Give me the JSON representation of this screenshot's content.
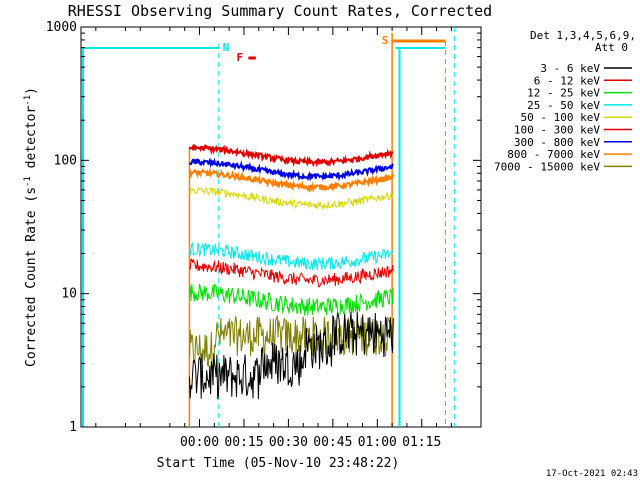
{
  "chart_data": {
    "type": "line",
    "title": "RHESSI Observing Summary Count Rates, Corrected",
    "xlabel": "Start Time (05-Nov-10 23:48:22)",
    "ylabel": "Corrected Count Rate (s⁻¹ detector⁻¹)",
    "ylabel_parts": {
      "main": "Corrected Count Rate (s",
      "sup1": "-1",
      "mid": " detector",
      "sup2": "-1",
      "end": ")"
    },
    "yscale": "log",
    "ylim": [
      1,
      1000
    ],
    "xlim_minutes": [
      -40,
      95
    ],
    "x_tick_minutes": [
      0,
      15,
      30,
      45,
      60,
      75
    ],
    "x_tick_labels": [
      "00:00",
      "00:15",
      "00:30",
      "00:45",
      "01:00",
      "01:15"
    ],
    "y_tick_values": [
      1,
      10,
      100,
      1000
    ],
    "y_tick_labels": [
      "1",
      "10",
      "100",
      "1000"
    ],
    "legend_header": [
      "Det 1,3,4,5,6,9,",
      "Att 0"
    ],
    "legend_position": "right outside",
    "data_window_minutes": [
      -3.4,
      65.4
    ],
    "series": [
      {
        "name": "3 - 6 keV",
        "color": "#000000",
        "level": 3,
        "noise": 0.22
      },
      {
        "name": "6 - 12 keV",
        "color": "#e00000",
        "level": 15,
        "noise": 0.05
      },
      {
        "name": "12 - 25 keV",
        "color": "#00e000",
        "level": 9.5,
        "noise": 0.07
      },
      {
        "name": "25 - 50 keV",
        "color": "#00e8e8",
        "level": 20,
        "noise": 0.05
      },
      {
        "name": "50 - 100 keV",
        "color": "#d8d800",
        "level": 55,
        "noise": 0.03
      },
      {
        "name": "100 - 300 keV",
        "color": "#e00000",
        "level": 115,
        "noise": 0.02
      },
      {
        "name": "300 - 800 keV",
        "color": "#0000e0",
        "level": 90,
        "noise": 0.02
      },
      {
        "name": "800 - 7000 keV",
        "color": "#ff8000",
        "level": 75,
        "noise": 0.02
      },
      {
        "name": "7000 - 15000 keV",
        "color": "#808000",
        "level": 4.5,
        "noise": 0.2
      }
    ],
    "markers": [
      {
        "label": "N",
        "color": "#00e8e8",
        "x_minutes": 6.5
      },
      {
        "label": "F",
        "color": "#e00000",
        "x_minutes": 14
      },
      {
        "label": "S",
        "color": "#ff8000",
        "x_minutes": 65
      }
    ],
    "timestamp": "17-Oct-2021 02:43"
  }
}
